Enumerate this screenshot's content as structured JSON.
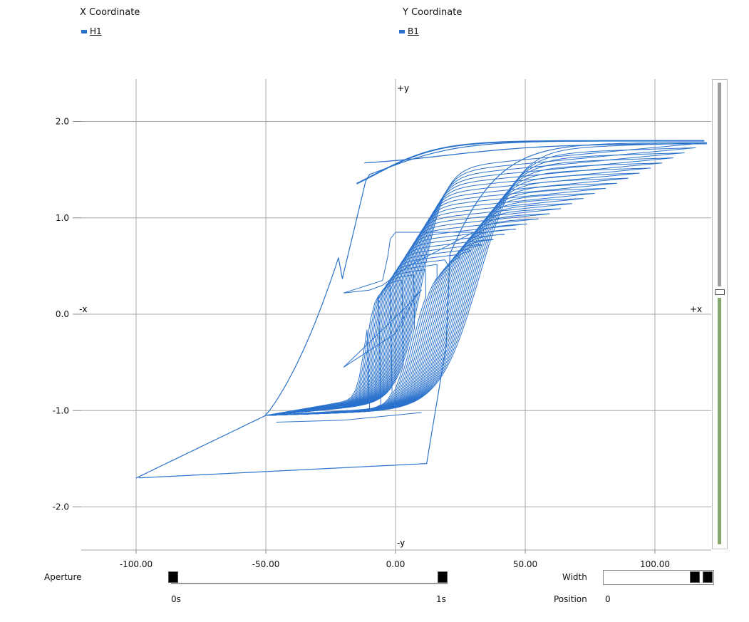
{
  "legend": {
    "x_title": "X Coordinate",
    "x_series": "H1",
    "y_title": "Y Coordinate",
    "y_series": "B1",
    "series_color": "#2a72cc"
  },
  "chart_data": {
    "type": "line",
    "title": "",
    "xlabel": "",
    "ylabel": "",
    "xlim": [
      -100,
      120
    ],
    "ylim": [
      -2.4,
      2.4
    ],
    "grid": true,
    "x_ticks": [
      -100,
      -50,
      0,
      50,
      100
    ],
    "x_tick_labels": [
      "-100.00",
      "-50.00",
      "0.00",
      "50.00",
      "100.00"
    ],
    "y_ticks": [
      2.0,
      1.0,
      0.0,
      -1.0,
      -2.0
    ],
    "y_tick_labels": [
      "2.0",
      "1.0",
      "0.0",
      "-1.0",
      "-2.0"
    ],
    "axis_markers": {
      "pos_y": "+y",
      "neg_y": "-y",
      "neg_x": "-x",
      "pos_x": "+x"
    },
    "color": "#2a72cc",
    "series": [
      {
        "name": "B1",
        "description_points": [
          [
            -100,
            -1.7
          ],
          [
            -50,
            -1.05
          ],
          [
            -15,
            1.45
          ],
          [
            -10,
            1.58
          ],
          [
            10,
            1.7
          ],
          [
            50,
            1.75
          ],
          [
            100,
            1.78
          ],
          [
            120,
            1.8
          ],
          [
            30,
            1.55
          ],
          [
            15,
            0.5
          ],
          [
            12,
            -0.5
          ],
          [
            10,
            -1.0
          ],
          [
            0,
            -1.6
          ],
          [
            -50,
            -1.7
          ],
          [
            -100,
            -1.7
          ]
        ],
        "minor_loops": {
          "count": 30,
          "start_h": -50,
          "start_b": -1.05,
          "end_h_range": [
            -10,
            120
          ],
          "end_b_range": [
            0.2,
            1.8
          ]
        }
      }
    ]
  },
  "controls": {
    "aperture_label": "Aperture",
    "aperture_start": "0s",
    "aperture_end": "1s",
    "width_label": "Width",
    "position_label": "Position",
    "position_value": "0"
  },
  "scroll_colors": {
    "top": "#9e9e9e",
    "bottom": "#86a86e"
  }
}
